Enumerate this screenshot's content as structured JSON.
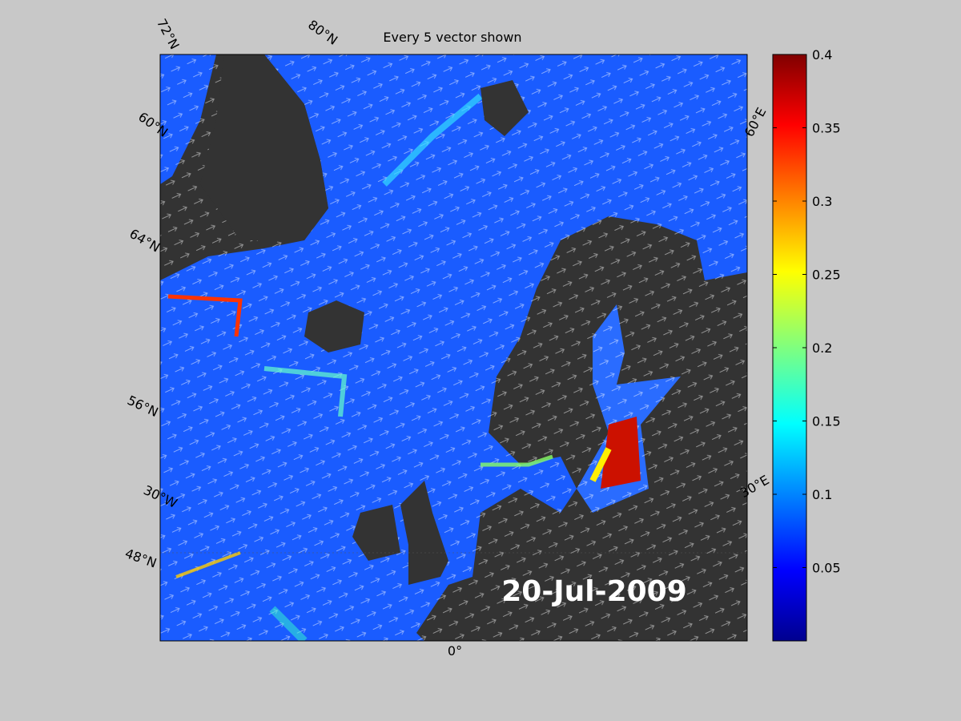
{
  "title": "Every 5 vector shown",
  "date_label": "20-Jul-2009",
  "graticule_labels": [
    "72°N",
    "80°N",
    "60°N",
    "64°N",
    "56°N",
    "30°W",
    "48°N",
    "0°",
    "30°E",
    "60°E"
  ],
  "colorbar": {
    "lim": [
      0,
      0.4
    ],
    "ticks": [
      0.05,
      0.1,
      0.15,
      0.2,
      0.25,
      0.3,
      0.35,
      0.4
    ]
  }
}
